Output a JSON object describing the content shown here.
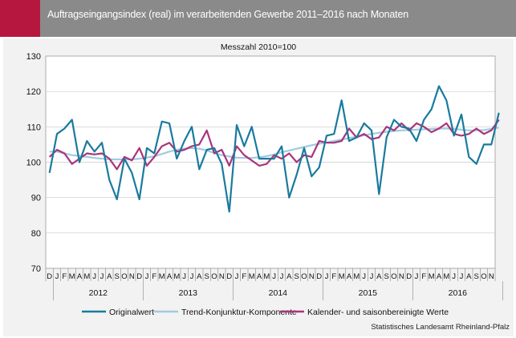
{
  "header": {
    "title": "Auftragseingangsindex (real) im verarbeitenden Gewerbe 2011–2016 nach Monaten"
  },
  "source": "Statistisches Landesamt Rheinland-Pfalz",
  "chart_data": {
    "type": "line",
    "subtitle": "Messzahl 2010=100",
    "ylim": [
      70,
      130
    ],
    "yticks": [
      70,
      80,
      90,
      100,
      110,
      120,
      130
    ],
    "grid": "horizontal",
    "legend_position": "bottom",
    "x_month_labels": [
      "D",
      "J",
      "F",
      "M",
      "A",
      "M",
      "J",
      "J",
      "A",
      "S",
      "O",
      "N",
      "D",
      "J",
      "F",
      "M",
      "A",
      "M",
      "J",
      "J",
      "A",
      "S",
      "O",
      "N",
      "D",
      "J",
      "F",
      "M",
      "A",
      "M",
      "J",
      "J",
      "A",
      "S",
      "O",
      "N",
      "D",
      "J",
      "F",
      "M",
      "A",
      "M",
      "J",
      "J",
      "A",
      "S",
      "O",
      "N",
      "D",
      "J",
      "F",
      "M",
      "A",
      "M",
      "J",
      "J",
      "A",
      "S",
      "O",
      "N"
    ],
    "year_labels": [
      "2012",
      "2013",
      "2014",
      "2015",
      "2016"
    ],
    "series": [
      {
        "name": "Originalwert",
        "color": "#1a7a9e",
        "values": [
          97,
          108,
          109.5,
          112,
          100,
          106,
          103,
          105.5,
          95,
          89.5,
          101,
          97,
          89.5,
          104,
          102.5,
          111.5,
          111,
          101,
          106,
          110,
          98,
          103.5,
          104,
          99.5,
          86,
          110.5,
          104.5,
          110,
          101,
          101,
          101,
          104.5,
          90,
          96.5,
          104,
          96,
          98.5,
          107.5,
          108,
          117.5,
          106,
          107,
          111,
          109,
          91,
          107,
          112,
          110,
          109.5,
          106,
          112,
          115,
          121.5,
          117.5,
          107.5,
          113.5,
          101.5,
          99.5,
          105,
          105,
          114
        ]
      },
      {
        "name": "Trend-Konjunktur-Komponente",
        "color": "#9fcbe0",
        "values": [
          103,
          103,
          102.5,
          102,
          101.8,
          101.5,
          101.2,
          101,
          100.8,
          100.8,
          100.8,
          100.8,
          101,
          101.3,
          101.7,
          102.3,
          103,
          103.5,
          103.8,
          104,
          103.8,
          103.3,
          102.6,
          102,
          101.6,
          101.3,
          101.2,
          101.2,
          101.4,
          101.7,
          102.2,
          102.8,
          103.3,
          103.8,
          104.3,
          104.8,
          105.2,
          105.6,
          106,
          106.4,
          106.8,
          107.2,
          107.6,
          108,
          108.3,
          108.6,
          108.8,
          109,
          109.1,
          109.2,
          109.3,
          109.4,
          109.5,
          109.5,
          109.4,
          109.2,
          109,
          109,
          109.1,
          109.4,
          109.8
        ]
      },
      {
        "name": "Kalender- und saisonbereinigte Werte",
        "color": "#a9357c",
        "values": [
          101.5,
          103.5,
          102.5,
          99.5,
          101,
          102.5,
          102.2,
          102.5,
          101,
          98,
          101.5,
          100.5,
          104,
          99,
          101.5,
          104.5,
          105.5,
          103,
          103.5,
          104.5,
          105,
          109,
          102.5,
          103.5,
          99,
          104.5,
          102,
          100.5,
          99,
          99.5,
          102,
          101,
          102.5,
          100,
          102,
          101.5,
          106,
          105.5,
          105.5,
          106,
          109.5,
          107,
          108,
          106.5,
          107,
          110,
          109,
          111,
          109,
          111,
          110,
          108.5,
          109.5,
          111,
          108,
          107.5,
          108,
          109.5,
          108,
          109,
          112
        ]
      }
    ]
  }
}
